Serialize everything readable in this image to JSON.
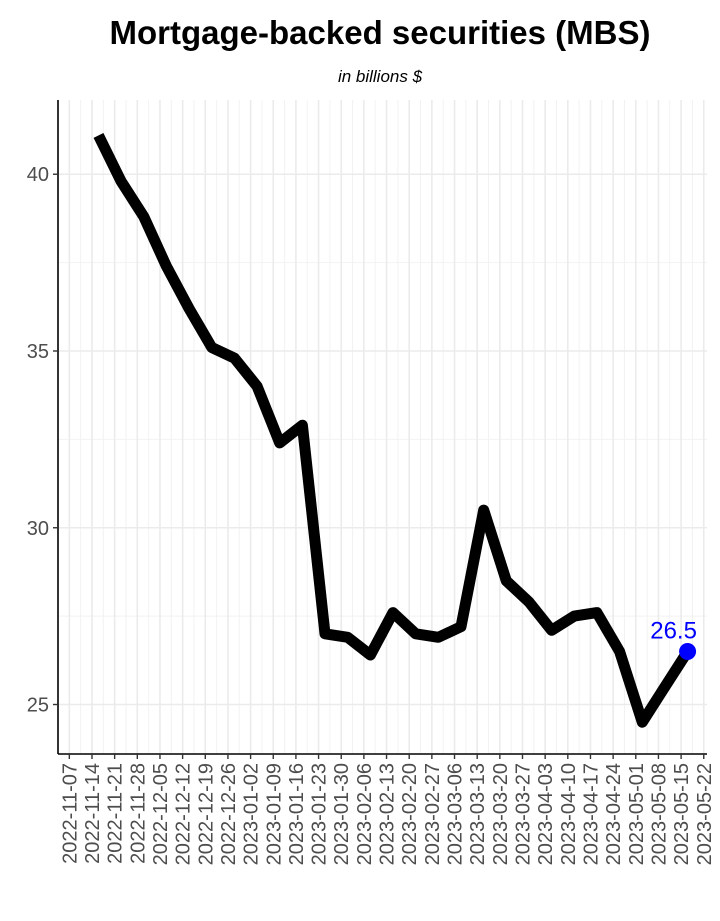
{
  "chart_data": {
    "type": "line",
    "title": "Mortgage-backed securities (MBS)",
    "subtitle": "in billions $",
    "xlabel": "",
    "ylabel": "",
    "ylim": [
      23.6,
      42.1
    ],
    "y_ticks": [
      25,
      30,
      35,
      40
    ],
    "x_ticks": [
      "2022-11-07",
      "2022-11-14",
      "2022-11-21",
      "2022-11-28",
      "2022-12-05",
      "2022-12-12",
      "2022-12-19",
      "2022-12-26",
      "2023-01-02",
      "2023-01-09",
      "2023-01-16",
      "2023-01-23",
      "2023-01-30",
      "2023-02-06",
      "2023-02-13",
      "2023-02-20",
      "2023-02-27",
      "2023-03-06",
      "2023-03-13",
      "2023-03-20",
      "2023-03-27",
      "2023-04-03",
      "2023-04-10",
      "2023-04-17",
      "2023-04-24",
      "2023-05-01",
      "2023-05-08",
      "2023-05-15",
      "2023-05-22"
    ],
    "grid": true,
    "line_color": "#000000",
    "highlight_color": "#0000ff",
    "series": [
      {
        "x": [
          "2022-11-16",
          "2022-11-23",
          "2022-11-30",
          "2022-12-07",
          "2022-12-14",
          "2022-12-21",
          "2022-12-28",
          "2023-01-04",
          "2023-01-11",
          "2023-01-18",
          "2023-01-25",
          "2023-02-01",
          "2023-02-08",
          "2023-02-15",
          "2023-02-22",
          "2023-03-01",
          "2023-03-08",
          "2023-03-15",
          "2023-03-22",
          "2023-03-29",
          "2023-04-05",
          "2023-04-12",
          "2023-04-19",
          "2023-04-26",
          "2023-05-03",
          "2023-05-10",
          "2023-05-17"
        ],
        "values": [
          41.1,
          39.8,
          38.8,
          37.4,
          36.2,
          35.1,
          34.8,
          34.0,
          32.4,
          32.9,
          27.0,
          26.9,
          26.4,
          27.6,
          27.0,
          26.9,
          27.2,
          30.5,
          28.5,
          27.9,
          27.1,
          27.5,
          27.6,
          26.5,
          24.5,
          25.5,
          26.5
        ]
      }
    ],
    "last_value_label": "26.5"
  }
}
